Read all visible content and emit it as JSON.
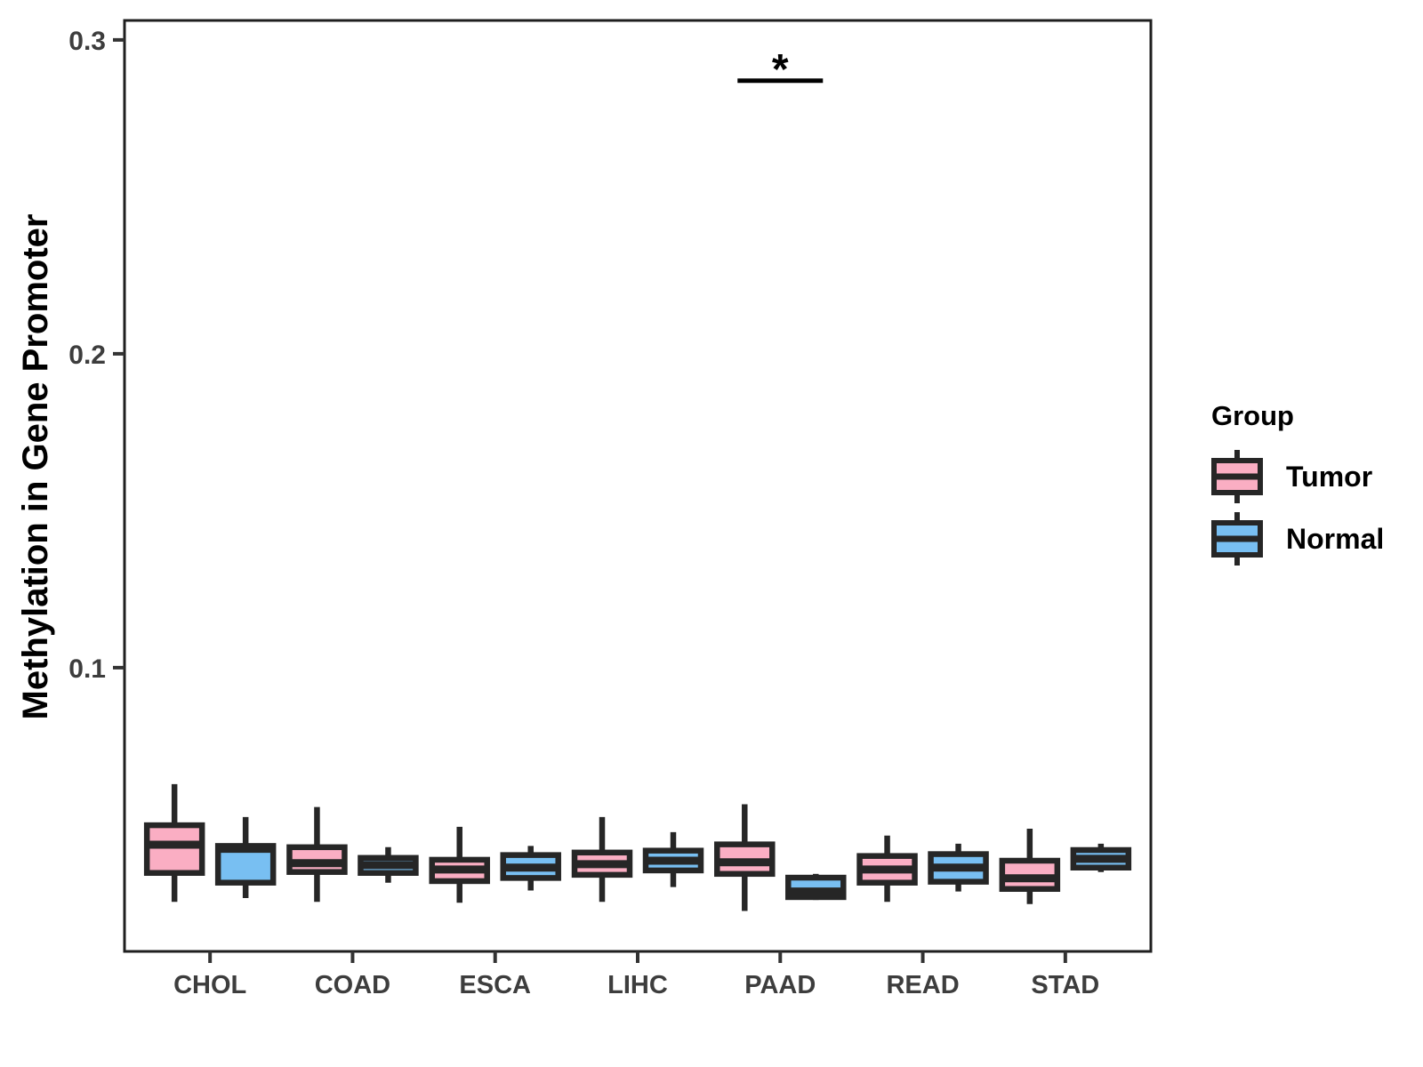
{
  "chart_data": {
    "type": "boxplot",
    "title": "",
    "xlabel": "",
    "ylabel": "Methylation in Gene Promoter",
    "categories": [
      "CHOL",
      "COAD",
      "ESCA",
      "LIHC",
      "PAAD",
      "READ",
      "STAD"
    ],
    "y_axis": {
      "ticks": [
        {
          "value": 0.1,
          "label": "0.1"
        },
        {
          "value": 0.2,
          "label": "0.2"
        },
        {
          "value": 0.3,
          "label": "0.3"
        }
      ],
      "ylim": [
        0.0096,
        0.3062
      ],
      "grid": false
    },
    "legend": {
      "title": "Group",
      "position": "right",
      "entries": [
        {
          "label": "Tumor",
          "color": "#FAAEC3"
        },
        {
          "label": "Normal",
          "color": "#78BFF2"
        }
      ]
    },
    "series": [
      {
        "name": "Tumor",
        "color": "#FAAEC3",
        "boxes": [
          {
            "low": 0.0254,
            "q1": 0.0346,
            "median": 0.0436,
            "q3": 0.0498,
            "high": 0.0629
          },
          {
            "low": 0.0254,
            "q1": 0.0349,
            "median": 0.0377,
            "q3": 0.0428,
            "high": 0.0556
          },
          {
            "low": 0.0251,
            "q1": 0.032,
            "median": 0.0357,
            "q3": 0.0388,
            "high": 0.0493
          },
          {
            "low": 0.0254,
            "q1": 0.034,
            "median": 0.0374,
            "q3": 0.0411,
            "high": 0.0524
          },
          {
            "low": 0.0225,
            "q1": 0.0343,
            "median": 0.038,
            "q3": 0.0437,
            "high": 0.0565
          },
          {
            "low": 0.0254,
            "q1": 0.0315,
            "median": 0.0357,
            "q3": 0.04,
            "high": 0.0465
          },
          {
            "low": 0.0247,
            "q1": 0.0295,
            "median": 0.0329,
            "q3": 0.0385,
            "high": 0.0487
          }
        ]
      },
      {
        "name": "Normal",
        "color": "#78BFF2",
        "boxes": [
          {
            "low": 0.0266,
            "q1": 0.0315,
            "median": 0.0423,
            "q3": 0.0432,
            "high": 0.0524
          },
          {
            "low": 0.0315,
            "q1": 0.0346,
            "median": 0.0371,
            "q3": 0.0394,
            "high": 0.0428
          },
          {
            "low": 0.029,
            "q1": 0.033,
            "median": 0.0363,
            "q3": 0.0403,
            "high": 0.0432
          },
          {
            "low": 0.0301,
            "q1": 0.0354,
            "median": 0.0385,
            "q3": 0.0417,
            "high": 0.0476
          },
          {
            "low": 0.026,
            "q1": 0.0269,
            "median": 0.0287,
            "q3": 0.0331,
            "high": 0.0343
          },
          {
            "low": 0.0287,
            "q1": 0.0318,
            "median": 0.0363,
            "q3": 0.0406,
            "high": 0.0439
          },
          {
            "low": 0.0349,
            "q1": 0.0363,
            "median": 0.0391,
            "q3": 0.0419,
            "high": 0.0439
          }
        ]
      }
    ],
    "annotation": {
      "text": "*",
      "category": "PAAD",
      "bar_y": 0.287
    }
  },
  "colors": {
    "box_stroke": "#262626",
    "axis_text": "#3d3d3d",
    "tick_mark": "#333333",
    "panel_border": "#1f1f1f",
    "annotation": "#000000",
    "background": "#ffffff"
  }
}
